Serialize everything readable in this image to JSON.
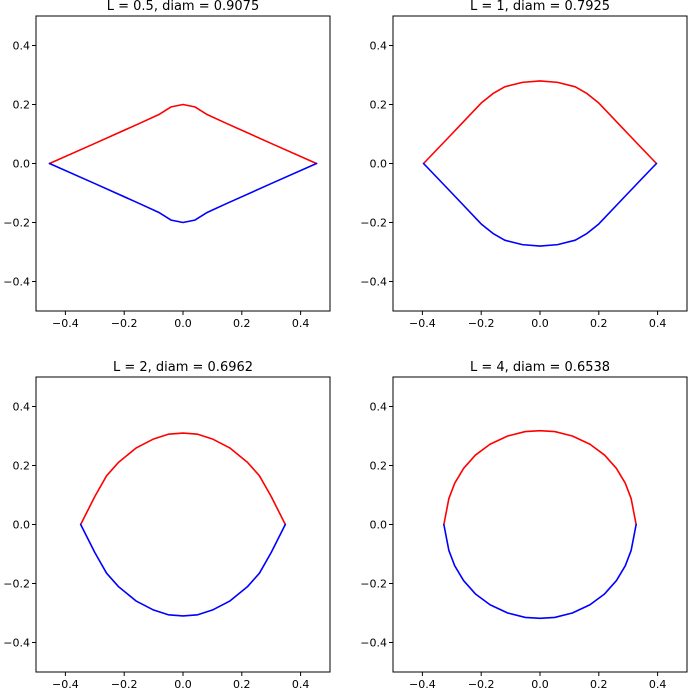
{
  "chart_data": [
    {
      "type": "line",
      "title": "L = 0.5, diam = 0.9075",
      "xlim": [
        -0.5,
        0.5
      ],
      "ylim": [
        -0.5,
        0.5
      ],
      "xticks": [
        -0.4,
        -0.2,
        0.0,
        0.2,
        0.4
      ],
      "yticks": [
        -0.4,
        -0.2,
        0.0,
        0.2,
        0.4
      ],
      "xtick_labels": [
        "−0.4",
        "−0.2",
        "0.0",
        "0.2",
        "0.4"
      ],
      "ytick_labels": [
        "−0.4",
        "−0.2",
        "0.0",
        "0.2",
        "0.4"
      ],
      "grid": false,
      "series": [
        {
          "color": "#ff0000",
          "x": [
            -0.454,
            -0.3,
            -0.15,
            -0.08,
            -0.04,
            0.0,
            0.04,
            0.08,
            0.15,
            0.3,
            0.454
          ],
          "y": [
            0.0,
            0.068,
            0.135,
            0.167,
            0.192,
            0.2,
            0.192,
            0.167,
            0.135,
            0.068,
            0.0
          ]
        },
        {
          "color": "#0000ff",
          "x": [
            -0.454,
            -0.3,
            -0.15,
            -0.08,
            -0.04,
            0.0,
            0.04,
            0.08,
            0.15,
            0.3,
            0.454
          ],
          "y": [
            0.0,
            -0.068,
            -0.135,
            -0.167,
            -0.192,
            -0.2,
            -0.192,
            -0.167,
            -0.135,
            -0.068,
            0.0
          ]
        }
      ]
    },
    {
      "type": "line",
      "title": "L = 1, diam = 0.7925",
      "xlim": [
        -0.5,
        0.5
      ],
      "ylim": [
        -0.5,
        0.5
      ],
      "xticks": [
        -0.4,
        -0.2,
        0.0,
        0.2,
        0.4
      ],
      "yticks": [
        -0.4,
        -0.2,
        0.0,
        0.2,
        0.4
      ],
      "xtick_labels": [
        "−0.4",
        "−0.2",
        "0.0",
        "0.2",
        "0.4"
      ],
      "ytick_labels": [
        "−0.4",
        "−0.2",
        "0.0",
        "0.2",
        "0.4"
      ],
      "grid": false,
      "series": [
        {
          "color": "#ff0000",
          "x": [
            -0.396,
            -0.3,
            -0.2,
            -0.16,
            -0.12,
            -0.06,
            0.0,
            0.06,
            0.12,
            0.16,
            0.2,
            0.3,
            0.396
          ],
          "y": [
            0.0,
            0.1,
            0.205,
            0.237,
            0.26,
            0.275,
            0.28,
            0.275,
            0.26,
            0.237,
            0.205,
            0.1,
            0.0
          ]
        },
        {
          "color": "#0000ff",
          "x": [
            -0.396,
            -0.3,
            -0.2,
            -0.16,
            -0.12,
            -0.06,
            0.0,
            0.06,
            0.12,
            0.16,
            0.2,
            0.3,
            0.396
          ],
          "y": [
            0.0,
            -0.1,
            -0.205,
            -0.237,
            -0.26,
            -0.275,
            -0.28,
            -0.275,
            -0.26,
            -0.237,
            -0.205,
            -0.1,
            0.0
          ]
        }
      ]
    },
    {
      "type": "line",
      "title": "L = 2, diam = 0.6962",
      "xlim": [
        -0.5,
        0.5
      ],
      "ylim": [
        -0.5,
        0.5
      ],
      "xticks": [
        -0.4,
        -0.2,
        0.0,
        0.2,
        0.4
      ],
      "yticks": [
        -0.4,
        -0.2,
        0.0,
        0.2,
        0.4
      ],
      "xtick_labels": [
        "−0.4",
        "−0.2",
        "0.0",
        "0.2",
        "0.4"
      ],
      "ytick_labels": [
        "−0.4",
        "−0.2",
        "0.0",
        "0.2",
        "0.4"
      ],
      "grid": false,
      "series": [
        {
          "color": "#ff0000",
          "x": [
            -0.348,
            -0.3,
            -0.26,
            -0.22,
            -0.16,
            -0.1,
            -0.05,
            0.0,
            0.05,
            0.1,
            0.16,
            0.22,
            0.26,
            0.3,
            0.348
          ],
          "y": [
            0.0,
            0.095,
            0.165,
            0.21,
            0.259,
            0.29,
            0.306,
            0.31,
            0.306,
            0.29,
            0.259,
            0.21,
            0.165,
            0.095,
            0.0
          ]
        },
        {
          "color": "#0000ff",
          "x": [
            -0.348,
            -0.3,
            -0.26,
            -0.22,
            -0.16,
            -0.1,
            -0.05,
            0.0,
            0.05,
            0.1,
            0.16,
            0.22,
            0.26,
            0.3,
            0.348
          ],
          "y": [
            0.0,
            -0.095,
            -0.165,
            -0.21,
            -0.259,
            -0.29,
            -0.306,
            -0.31,
            -0.306,
            -0.29,
            -0.259,
            -0.21,
            -0.165,
            -0.095,
            0.0
          ]
        }
      ]
    },
    {
      "type": "line",
      "title": "L = 4, diam = 0.6538",
      "xlim": [
        -0.5,
        0.5
      ],
      "ylim": [
        -0.5,
        0.5
      ],
      "xticks": [
        -0.4,
        -0.2,
        0.0,
        0.2,
        0.4
      ],
      "yticks": [
        -0.4,
        -0.2,
        0.0,
        0.2,
        0.4
      ],
      "xtick_labels": [
        "−0.4",
        "−0.2",
        "0.0",
        "0.2",
        "0.4"
      ],
      "ytick_labels": [
        "−0.4",
        "−0.2",
        "0.0",
        "0.2",
        "0.4"
      ],
      "grid": false,
      "series": [
        {
          "color": "#ff0000",
          "x": [
            -0.327,
            -0.31,
            -0.29,
            -0.26,
            -0.22,
            -0.17,
            -0.11,
            -0.05,
            0.0,
            0.05,
            0.11,
            0.17,
            0.22,
            0.26,
            0.29,
            0.31,
            0.327
          ],
          "y": [
            0.0,
            0.088,
            0.14,
            0.19,
            0.235,
            0.272,
            0.3,
            0.315,
            0.318,
            0.315,
            0.3,
            0.272,
            0.235,
            0.19,
            0.14,
            0.088,
            0.0
          ]
        },
        {
          "color": "#0000ff",
          "x": [
            -0.327,
            -0.31,
            -0.29,
            -0.26,
            -0.22,
            -0.17,
            -0.11,
            -0.05,
            0.0,
            0.05,
            0.11,
            0.17,
            0.22,
            0.26,
            0.29,
            0.31,
            0.327
          ],
          "y": [
            0.0,
            -0.088,
            -0.14,
            -0.19,
            -0.235,
            -0.272,
            -0.3,
            -0.315,
            -0.318,
            -0.315,
            -0.3,
            -0.272,
            -0.235,
            -0.19,
            -0.14,
            -0.088,
            0.0
          ]
        }
      ]
    }
  ]
}
